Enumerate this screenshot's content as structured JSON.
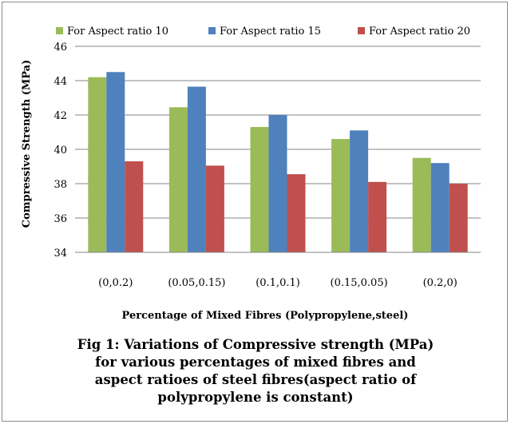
{
  "chart_data": {
    "type": "bar",
    "categories": [
      "(0,0.2)",
      "(0.05,0.15)",
      "(0.1,0.1)",
      "(0.15,0.05)",
      "(0.2,0)"
    ],
    "series": [
      {
        "name": "For Aspect ratio 10",
        "color": "#9bbb59",
        "values": [
          44.2,
          42.45,
          41.3,
          40.6,
          39.5
        ]
      },
      {
        "name": "For Aspect ratio 15",
        "color": "#4f81bd",
        "values": [
          44.5,
          43.65,
          42.0,
          41.1,
          39.2
        ]
      },
      {
        "name": "For Aspect ratio 20",
        "color": "#c0504d",
        "values": [
          39.3,
          39.05,
          38.55,
          38.1,
          38.0
        ]
      }
    ],
    "xlabel": "Percentage of Mixed Fibres (Polypropylene,steel)",
    "ylabel": "Compressive Strength (MPa)",
    "ylim": [
      34,
      46
    ],
    "yticks": [
      34,
      36,
      38,
      40,
      42,
      44,
      46
    ],
    "grid": true,
    "legend": "top"
  },
  "caption": {
    "lines": [
      "Fig 1: Variations of Compressive strength (MPa)",
      "for various percentages of mixed fibres and",
      "aspect ratioes of steel fibres(aspect ratio of",
      "polypropylene is constant)"
    ]
  }
}
